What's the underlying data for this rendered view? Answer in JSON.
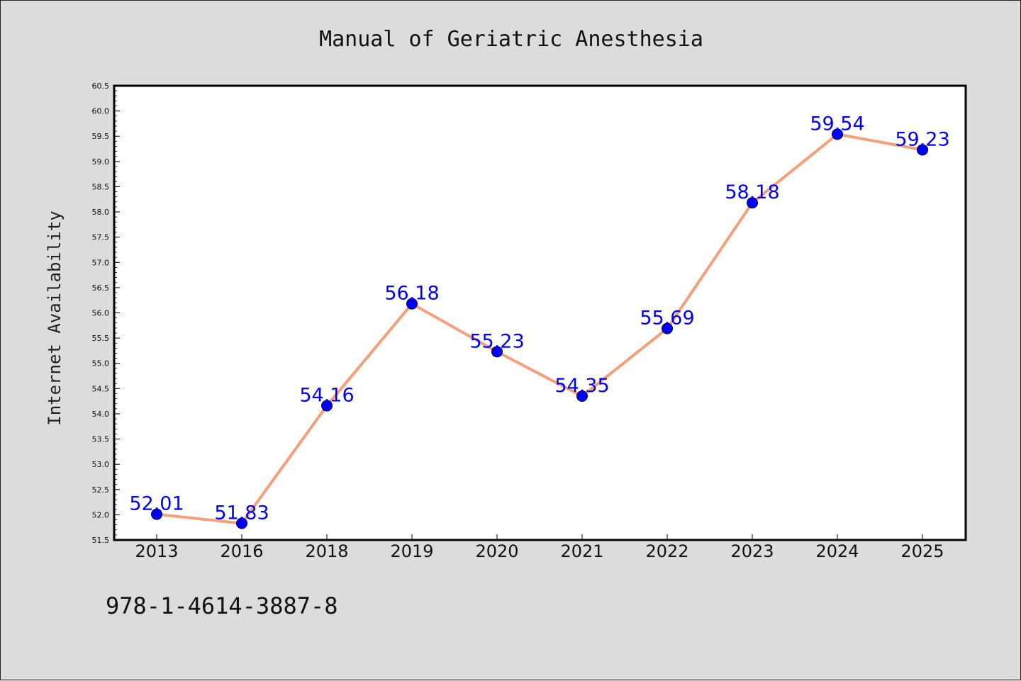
{
  "page": {
    "isbn": "978-1-4614-3887-8"
  },
  "chart_data": {
    "type": "line",
    "title": "Manual of Geriatric Anesthesia",
    "xlabel": "",
    "ylabel": "Internet Availability",
    "categories": [
      "2013",
      "2016",
      "2018",
      "2019",
      "2020",
      "2021",
      "2022",
      "2023",
      "2024",
      "2025"
    ],
    "values": [
      52.01,
      51.83,
      54.16,
      56.18,
      55.23,
      54.35,
      55.69,
      58.18,
      59.54,
      59.23
    ],
    "data_labels": [
      "52.01",
      "51.83",
      "54.16",
      "56.18",
      "55.23",
      "54.35",
      "55.69",
      "58.18",
      "59.54",
      "59.23"
    ],
    "ylim": [
      51.5,
      60.5
    ],
    "yticks": [
      "51.5",
      "52.0",
      "52.5",
      "53.0",
      "53.5",
      "54.0",
      "54.5",
      "55.0",
      "55.5",
      "56.0",
      "56.5",
      "57.0",
      "57.5",
      "58.0",
      "58.5",
      "59.0",
      "59.5",
      "60.0",
      "60.5"
    ],
    "grid": false,
    "colors": {
      "line": "#f4a07a",
      "marker": "#0000ff",
      "labels": "#0000ff",
      "plot_background": "#ffffff",
      "figure_background": "#dcdcdc"
    }
  }
}
